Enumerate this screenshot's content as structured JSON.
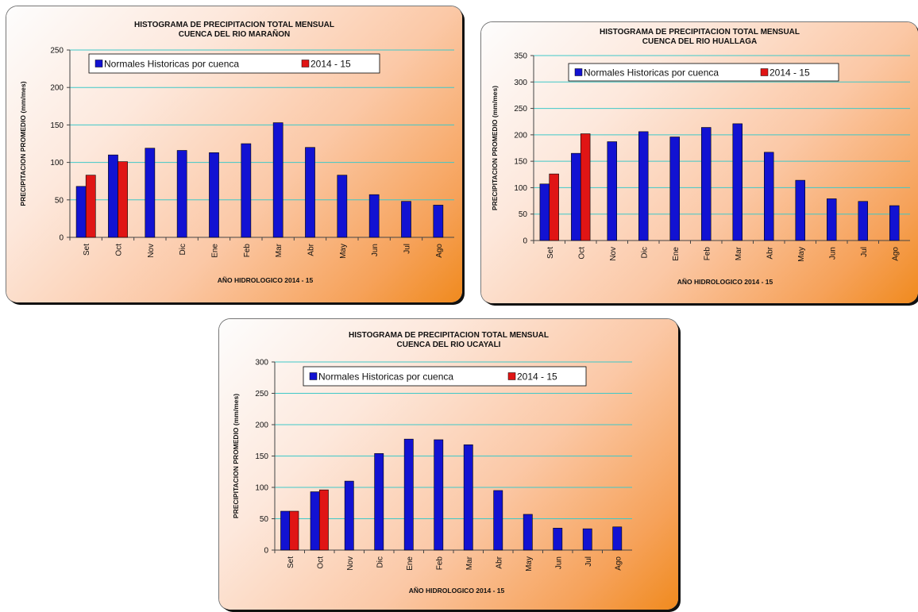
{
  "colors": {
    "normal": "#1212d2",
    "season": "#e01515",
    "grid": "#3fc8c8"
  },
  "chart_data": [
    {
      "type": "bar",
      "title": [
        "HISTOGRAMA DE PRECIPITACION TOTAL MENSUAL",
        "CUENCA DEL RIO MARAÑON"
      ],
      "xlabel": "AÑO HIDROLOGICO 2014 - 15",
      "ylabel": "PRECIPITACION PROMEDIO (mm/mes)",
      "ylim": [
        0,
        250
      ],
      "yticks": [
        0,
        50,
        100,
        150,
        200,
        250
      ],
      "grid": true,
      "legend_position": "top",
      "categories": [
        "Set",
        "Oct",
        "Nov",
        "Dic",
        "Ene",
        "Feb",
        "Mar",
        "Abr",
        "May",
        "Jun",
        "Jul",
        "Ago"
      ],
      "series": [
        {
          "name": "Normales Historicas por cuenca",
          "values": [
            68,
            110,
            119,
            116,
            113,
            125,
            153,
            120,
            83,
            57,
            48,
            43
          ]
        },
        {
          "name": "2014 - 15",
          "values": [
            83,
            101,
            null,
            null,
            null,
            null,
            null,
            null,
            null,
            null,
            null,
            null
          ]
        }
      ]
    },
    {
      "type": "bar",
      "title": [
        "HISTOGRAMA DE PRECIPITACION TOTAL MENSUAL",
        "CUENCA DEL RIO HUALLAGA"
      ],
      "xlabel": "AÑO HIDROLOGICO 2014 - 15",
      "ylabel": "PRECIPITACION PROMEDIO (mm/mes)",
      "ylim": [
        0,
        350
      ],
      "yticks": [
        0,
        50,
        100,
        150,
        200,
        250,
        300,
        350
      ],
      "grid": true,
      "legend_position": "top",
      "categories": [
        "Set",
        "Oct",
        "Nov",
        "Dic",
        "Ene",
        "Feb",
        "Mar",
        "Abr",
        "May",
        "Jun",
        "Jul",
        "Ago"
      ],
      "series": [
        {
          "name": "Normales Historicas por cuenca",
          "values": [
            107,
            165,
            187,
            206,
            196,
            214,
            221,
            167,
            114,
            79,
            74,
            66
          ]
        },
        {
          "name": "2014 - 15",
          "values": [
            126,
            202,
            null,
            null,
            null,
            null,
            null,
            null,
            null,
            null,
            null,
            null
          ]
        }
      ]
    },
    {
      "type": "bar",
      "title": [
        "HISTOGRAMA DE PRECIPITACION TOTAL MENSUAL",
        "CUENCA DEL RIO UCAYALI"
      ],
      "xlabel": "AÑO HIDROLOGICO 2014 - 15",
      "ylabel": "PRECIPITACION PROMEDIO (mm/mes)",
      "ylim": [
        0,
        300
      ],
      "yticks": [
        0,
        50,
        100,
        150,
        200,
        250,
        300
      ],
      "grid": true,
      "legend_position": "top",
      "categories": [
        "Set",
        "Oct",
        "Nov",
        "Dic",
        "Ene",
        "Feb",
        "Mar",
        "Abr",
        "May",
        "Jun",
        "Jul",
        "Ago"
      ],
      "series": [
        {
          "name": "Normales Historicas por cuenca",
          "values": [
            62,
            93,
            110,
            154,
            177,
            176,
            168,
            95,
            57,
            35,
            34,
            37
          ]
        },
        {
          "name": "2014 - 15",
          "values": [
            62,
            96,
            null,
            null,
            null,
            null,
            null,
            null,
            null,
            null,
            null,
            null
          ]
        }
      ]
    }
  ]
}
